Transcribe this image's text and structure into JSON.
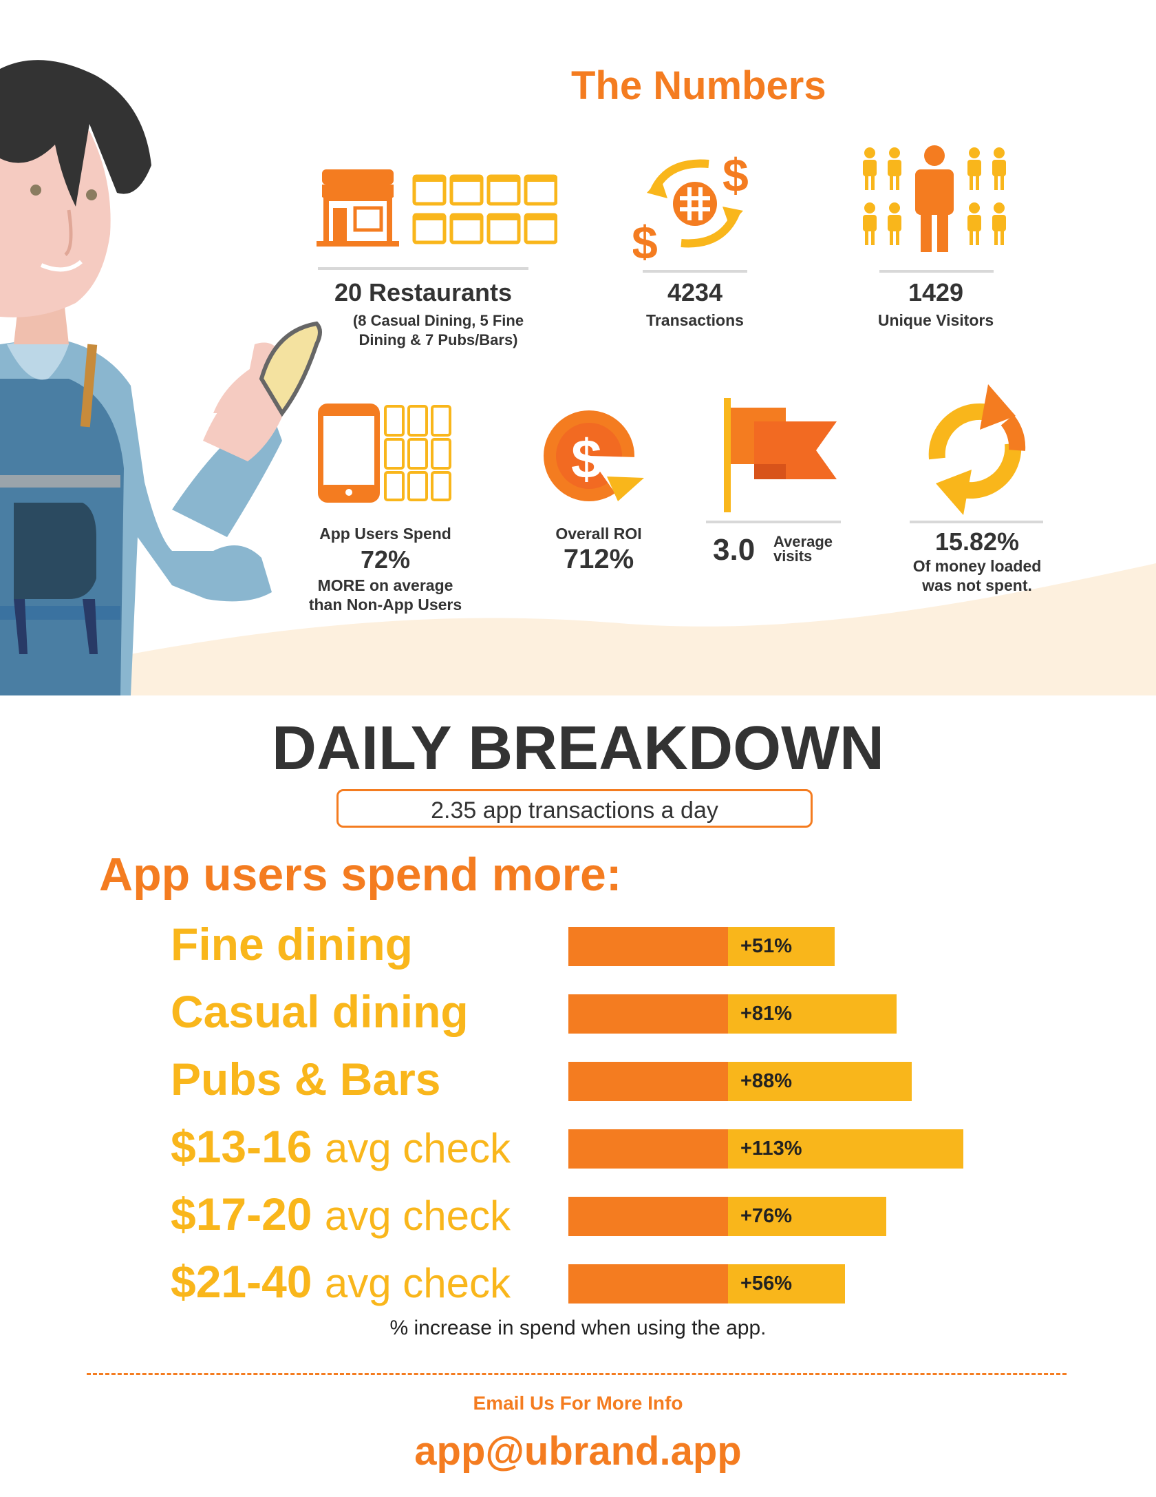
{
  "header": {
    "title": "The Numbers"
  },
  "stats": {
    "restaurants": {
      "value": "20 Restaurants",
      "detail_line1": "(8 Casual Dining, 5 Fine",
      "detail_line2": "Dining & 7 Pubs/Bars)",
      "icon": "storefront-icon"
    },
    "transactions": {
      "value": "4234",
      "label": "Transactions",
      "icon": "currency-exchange-icon"
    },
    "visitors": {
      "value": "1429",
      "label": "Unique Visitors",
      "icon": "people-icon"
    },
    "app_spend": {
      "line1": "App Users Spend",
      "value": "72%",
      "line2": "MORE on average",
      "line3": "than Non-App Users",
      "icon": "phone-icon"
    },
    "roi": {
      "label": "Overall ROI",
      "value": "712%",
      "icon": "dollar-pie-icon"
    },
    "visits": {
      "value": "3.0",
      "label_line1": "Average",
      "label_line2": "visits",
      "icon": "flag-icon"
    },
    "unspent": {
      "value": "15.82%",
      "line1": "Of money loaded",
      "line2": "was not spent.",
      "icon": "refresh-icon"
    }
  },
  "breakdown": {
    "title": "DAILY BREAKDOWN",
    "per_day": "2.35 app transactions a day",
    "heading": "App users spend more:",
    "footnote": "% increase in spend when using the app.",
    "rows": [
      {
        "label": "Fine dining",
        "suffix": "",
        "increase": "+51%",
        "value": 51
      },
      {
        "label": "Casual dining",
        "suffix": "",
        "increase": "+81%",
        "value": 81
      },
      {
        "label": "Pubs & Bars",
        "suffix": "",
        "increase": "+88%",
        "value": 88
      },
      {
        "label": "$13-16",
        "suffix": "avg check",
        "increase": "+113%",
        "value": 113
      },
      {
        "label": "$17-20",
        "suffix": "avg check",
        "increase": "+76%",
        "value": 76
      },
      {
        "label": "$21-40",
        "suffix": "avg check",
        "increase": "+56%",
        "value": 56
      }
    ]
  },
  "footer": {
    "cta": "Email Us For More Info",
    "email": "app@ubrand.app"
  },
  "colors": {
    "orange": "#f47c20",
    "gold": "#f9b61b",
    "dark": "#333333",
    "cream": "#fdf0de"
  }
}
